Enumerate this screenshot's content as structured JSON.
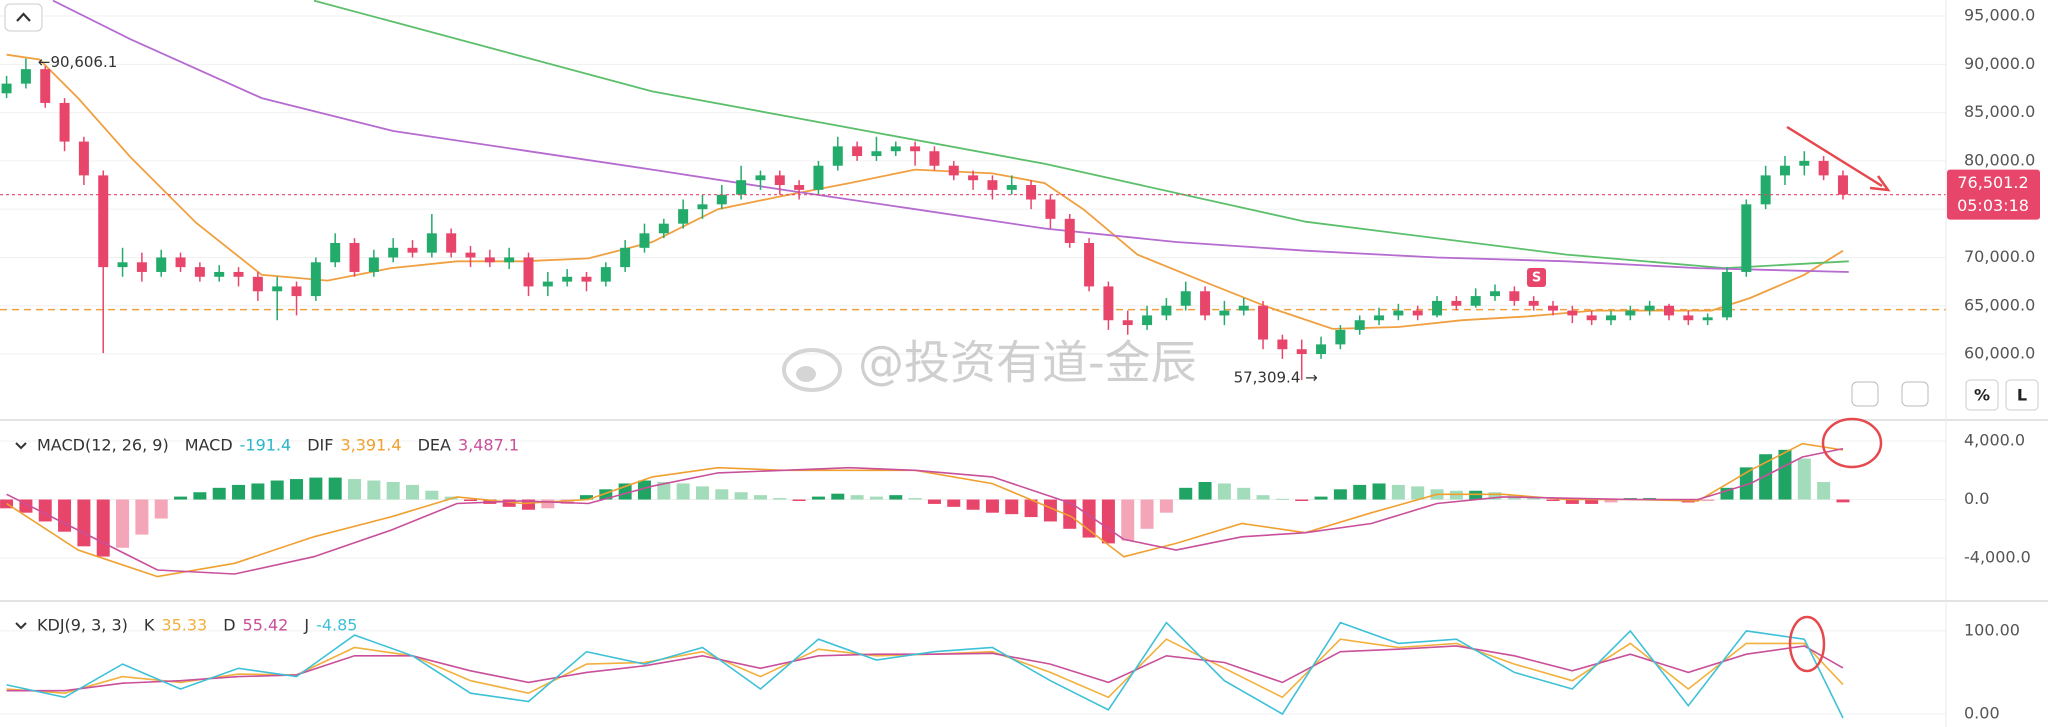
{
  "chart_data": [
    {
      "type": "candlestick",
      "up_color": "#22ab6b",
      "down_color": "#e8456b",
      "open": [
        87000,
        88000,
        89500,
        86000,
        82000,
        78500,
        69000,
        69500,
        68500,
        70000,
        69000,
        68000,
        68500,
        68000,
        66500,
        67000,
        66000,
        69500,
        71500,
        68500,
        70000,
        71000,
        70500,
        72500,
        70500,
        70000,
        69500,
        70000,
        67000,
        67500,
        68000,
        67500,
        69000,
        71000,
        72500,
        73500,
        75000,
        75500,
        76500,
        78000,
        78500,
        77500,
        77000,
        79500,
        81500,
        80500,
        81000,
        81500,
        81000,
        79500,
        78500,
        78000,
        77000,
        77500,
        76000,
        74000,
        71500,
        67000,
        63500,
        63000,
        64000,
        65000,
        66500,
        64000,
        64500,
        65000,
        61500,
        60500,
        60000,
        61000,
        62500,
        63500,
        64000,
        64500,
        64000,
        65500,
        65000,
        66000,
        66500,
        65500,
        65000,
        64500,
        64000,
        63500,
        64000,
        64500,
        65000,
        64000,
        63500,
        63800,
        68500,
        75500,
        78500,
        79500,
        80000,
        78500
      ],
      "high": [
        88800,
        90606.1,
        89800,
        86500,
        82500,
        79000,
        71000,
        70500,
        70800,
        70500,
        69500,
        69200,
        69000,
        68500,
        68000,
        67500,
        70000,
        72500,
        72000,
        70800,
        72000,
        71800,
        74500,
        73000,
        71200,
        70800,
        71000,
        70500,
        68500,
        68800,
        68500,
        69500,
        71800,
        73500,
        74000,
        76000,
        76500,
        77500,
        79500,
        79000,
        79000,
        78000,
        80000,
        82500,
        82000,
        82500,
        82000,
        82000,
        81500,
        80000,
        79000,
        78500,
        78500,
        78000,
        76500,
        74500,
        72000,
        67500,
        64500,
        65000,
        65800,
        67500,
        67000,
        65500,
        65800,
        65500,
        62000,
        61500,
        61800,
        63000,
        64000,
        64800,
        65200,
        65000,
        66000,
        66000,
        66800,
        67200,
        67000,
        66000,
        65500,
        65000,
        64500,
        64500,
        65000,
        65500,
        65200,
        64500,
        64200,
        69000,
        76000,
        79500,
        80500,
        81000,
        80500,
        79000
      ],
      "low": [
        86500,
        87500,
        85500,
        81000,
        77500,
        60100,
        68000,
        67500,
        68000,
        68500,
        67500,
        67500,
        67000,
        65500,
        63500,
        64000,
        65500,
        69000,
        68000,
        68000,
        69500,
        70000,
        70000,
        70000,
        69000,
        69000,
        68800,
        66000,
        66000,
        67000,
        66500,
        67000,
        68500,
        70500,
        72000,
        73000,
        74000,
        75000,
        76000,
        77000,
        76500,
        76000,
        76500,
        79000,
        80000,
        80000,
        80500,
        79500,
        79000,
        78000,
        77000,
        76000,
        76500,
        75000,
        73000,
        71000,
        66500,
        62500,
        62000,
        62500,
        63500,
        64500,
        63500,
        63000,
        64000,
        60500,
        59500,
        57309.4,
        59500,
        60500,
        62000,
        63000,
        63500,
        63500,
        63800,
        64500,
        64800,
        65500,
        65000,
        64500,
        64000,
        63200,
        63000,
        63000,
        63500,
        64000,
        63500,
        63000,
        63000,
        63500,
        68000,
        75000,
        77500,
        78500,
        78000,
        76000
      ],
      "close": [
        88000,
        89500,
        86000,
        82000,
        78500,
        69000,
        69500,
        68500,
        70000,
        69000,
        68000,
        68500,
        68000,
        66500,
        67000,
        66000,
        69500,
        71500,
        68500,
        70000,
        71000,
        70500,
        72500,
        70500,
        70000,
        69500,
        70000,
        67000,
        67500,
        68000,
        67500,
        69000,
        71000,
        72500,
        73500,
        75000,
        75500,
        76500,
        78000,
        78500,
        77500,
        77000,
        79500,
        81500,
        80500,
        81000,
        81500,
        81000,
        79500,
        78500,
        78000,
        77000,
        77500,
        76000,
        74000,
        71500,
        67000,
        63500,
        63000,
        64000,
        65000,
        66500,
        64000,
        64500,
        65000,
        61500,
        60500,
        60000,
        61000,
        62500,
        63500,
        64000,
        64500,
        64000,
        65500,
        65000,
        66000,
        66500,
        65500,
        65000,
        64500,
        64000,
        63500,
        64000,
        64500,
        65000,
        64000,
        63500,
        63800,
        68500,
        75500,
        78500,
        79500,
        80000,
        78500,
        76501.2
      ],
      "lines": [
        {
          "color": "#f0a040",
          "x": [
            0,
            1.7,
            3.7,
            6.4,
            9.8,
            13.2,
            16.6,
            19.9,
            23.3,
            26.7,
            30.1,
            33.4,
            36.8,
            40.2,
            43.6,
            47,
            51,
            53.7,
            55.7,
            58.5,
            61.8,
            65.2,
            68.6,
            72,
            75.3,
            78.7,
            82.1,
            85.5,
            88.2,
            90.2,
            93,
            95
          ],
          "values": [
            91000,
            90500,
            86500,
            80400,
            73600,
            68200,
            67600,
            68900,
            69600,
            69600,
            69900,
            71600,
            75000,
            76400,
            77700,
            79100,
            78700,
            77700,
            75000,
            70300,
            67600,
            64900,
            62600,
            62800,
            63500,
            63900,
            64500,
            64500,
            64500,
            65800,
            68200,
            70700
          ]
        },
        {
          "color": "#5cbf6b",
          "x": [
            15.9,
            33.4,
            53.7,
            67.2,
            80.7,
            88.9,
            95.3
          ],
          "values": [
            96600,
            87200,
            79700,
            73700,
            70300,
            68900,
            69600
          ]
        },
        {
          "color": "#b56bd0",
          "x": [
            2.4,
            6.4,
            13.2,
            20,
            26.7,
            33.4,
            40.2,
            47,
            53.7,
            60.5,
            67.2,
            74,
            80.7,
            87.5,
            95.3
          ],
          "values": [
            96600,
            92600,
            86500,
            83100,
            81100,
            79100,
            77000,
            75000,
            73000,
            71600,
            70700,
            70000,
            69600,
            68900,
            68500
          ]
        }
      ],
      "level_line": {
        "value": 64600,
        "color": "#f0a040"
      },
      "last_price": {
        "label": "76,501.2",
        "countdown": "05:03:18",
        "color": "#e8456b"
      },
      "high_label": "←90,606.1",
      "low_label": "57,309.4 →",
      "signal_label": "S",
      "watermark": "@投资有道-金辰",
      "buttons": [
        "%",
        "L"
      ],
      "xlim": [
        -0.34,
        100.33
      ],
      "ylim": [
        53170,
        96660
      ],
      "yticks": [
        {
          "value": 95000,
          "label": "95,000.0"
        },
        {
          "value": 90000,
          "label": "90,000.0"
        },
        {
          "value": 85000,
          "label": "85,000.0"
        },
        {
          "value": 80000,
          "label": "80,000.0"
        },
        {
          "value": 75000,
          "label": "75,000.0"
        },
        {
          "value": 70000,
          "label": "70,000.0"
        },
        {
          "value": 65000,
          "label": "65,000.0"
        },
        {
          "value": 60000,
          "label": "60,000.0"
        }
      ],
      "grid": true
    },
    {
      "type": "macd",
      "title": "MACD(12, 26, 9)",
      "histogram": {
        "name": "MACD",
        "last_label": "-191.4",
        "color": "#2ab5c8",
        "colors": {
          "up_strong": "#1fa463",
          "up_weak": "#a3dcba",
          "down_strong": "#e8456b",
          "down_weak": "#f4a6b8"
        },
        "values": [
          -600,
          -900,
          -1500,
          -2200,
          -3200,
          -3900,
          -3300,
          -2400,
          -1300,
          200,
          500,
          800,
          1000,
          1100,
          1300,
          1400,
          1500,
          1500,
          1400,
          1300,
          1200,
          1000,
          600,
          200,
          -100,
          -300,
          -500,
          -700,
          -600,
          -300,
          300,
          700,
          1100,
          1300,
          1200,
          1100,
          900,
          700,
          500,
          300,
          100,
          -100,
          200,
          400,
          300,
          200,
          300,
          100,
          -300,
          -500,
          -700,
          -900,
          -1000,
          -1200,
          -1500,
          -2000,
          -2600,
          -3000,
          -2800,
          -2000,
          -900,
          800,
          1200,
          1100,
          800,
          300,
          50,
          -100,
          200,
          700,
          1000,
          1100,
          1000,
          900,
          700,
          600,
          600,
          500,
          300,
          100,
          -100,
          -300,
          -300,
          -200,
          100,
          100,
          -100,
          -200,
          -100,
          800,
          2200,
          3100,
          3400,
          2800,
          1200,
          -191.4
        ]
      },
      "x": [
        0,
        3.7,
        7.8,
        11.8,
        15.9,
        19.9,
        23.3,
        26.7,
        30.1,
        33.4,
        36.8,
        40.2,
        43.6,
        47,
        51,
        55.1,
        57.8,
        60.5,
        63.9,
        67.2,
        70.6,
        74,
        77.4,
        80.7,
        84.1,
        87.5,
        90.2,
        92.9,
        95
      ],
      "series": [
        {
          "name": "DIF",
          "last_label": "3,391.4",
          "color": "#f0a030",
          "values": [
            -270,
            -3450,
            -5270,
            -4360,
            -2550,
            -1180,
            180,
            -270,
            0,
            1550,
            2180,
            2000,
            2000,
            2000,
            1090,
            -1180,
            -3910,
            -3000,
            -1640,
            -2270,
            -910,
            360,
            360,
            0,
            0,
            -90,
            2000,
            3820,
            3391.4
          ]
        },
        {
          "name": "DEA",
          "last_label": "3,487.1",
          "color": "#c9509a",
          "values": [
            360,
            -2090,
            -4820,
            -5090,
            -3910,
            -2090,
            -270,
            -90,
            -270,
            910,
            1820,
            2000,
            2180,
            2000,
            1550,
            -270,
            -2730,
            -3450,
            -2550,
            -2270,
            -1640,
            -270,
            180,
            90,
            0,
            0,
            1090,
            2910,
            3487.1
          ]
        }
      ],
      "xlim": [
        -0.34,
        100.33
      ],
      "ylim": [
        -6940,
        5440
      ],
      "yticks": [
        {
          "value": 4000,
          "label": "4,000.0"
        },
        {
          "value": 0,
          "label": "0.0"
        },
        {
          "value": -4000,
          "label": "-4,000.0"
        }
      ],
      "grid": true
    },
    {
      "type": "line",
      "title": "KDJ(9, 3, 3)",
      "x": [
        0,
        3,
        6,
        9,
        12,
        15,
        18,
        21,
        24,
        27,
        30,
        33,
        36,
        39,
        42,
        45,
        48,
        51,
        54,
        57,
        60,
        63,
        66,
        69,
        72,
        75,
        78,
        81,
        84,
        87,
        90,
        93,
        95
      ],
      "series": [
        {
          "name": "K",
          "last_label": "35.33",
          "color": "#f2b03c",
          "values": [
            30,
            25,
            45,
            38,
            48,
            47,
            80,
            70,
            40,
            25,
            60,
            62,
            75,
            45,
            78,
            70,
            72,
            75,
            50,
            20,
            90,
            55,
            20,
            90,
            80,
            85,
            60,
            40,
            85,
            30,
            85,
            85,
            35.33
          ]
        },
        {
          "name": "D",
          "last_label": "55.42",
          "color": "#c9509a",
          "values": [
            28,
            28,
            37,
            40,
            45,
            47,
            70,
            70,
            52,
            38,
            50,
            58,
            70,
            55,
            70,
            72,
            72,
            73,
            60,
            38,
            70,
            62,
            38,
            75,
            78,
            82,
            70,
            52,
            72,
            50,
            72,
            82,
            55.42
          ]
        },
        {
          "name": "J",
          "last_label": "-4.85",
          "color": "#3ec1d8",
          "values": [
            35,
            20,
            60,
            30,
            55,
            45,
            95,
            70,
            25,
            15,
            75,
            60,
            80,
            30,
            90,
            65,
            75,
            80,
            40,
            5,
            110,
            40,
            0,
            110,
            85,
            90,
            50,
            30,
            100,
            10,
            100,
            90,
            -4.85
          ]
        }
      ],
      "xlim": [
        -0.34,
        100.33
      ],
      "ylim": [
        -15.7,
        136
      ],
      "yticks": [
        {
          "value": 100,
          "label": "100.00"
        },
        {
          "value": 0,
          "label": "0.00"
        }
      ],
      "grid": true
    }
  ]
}
